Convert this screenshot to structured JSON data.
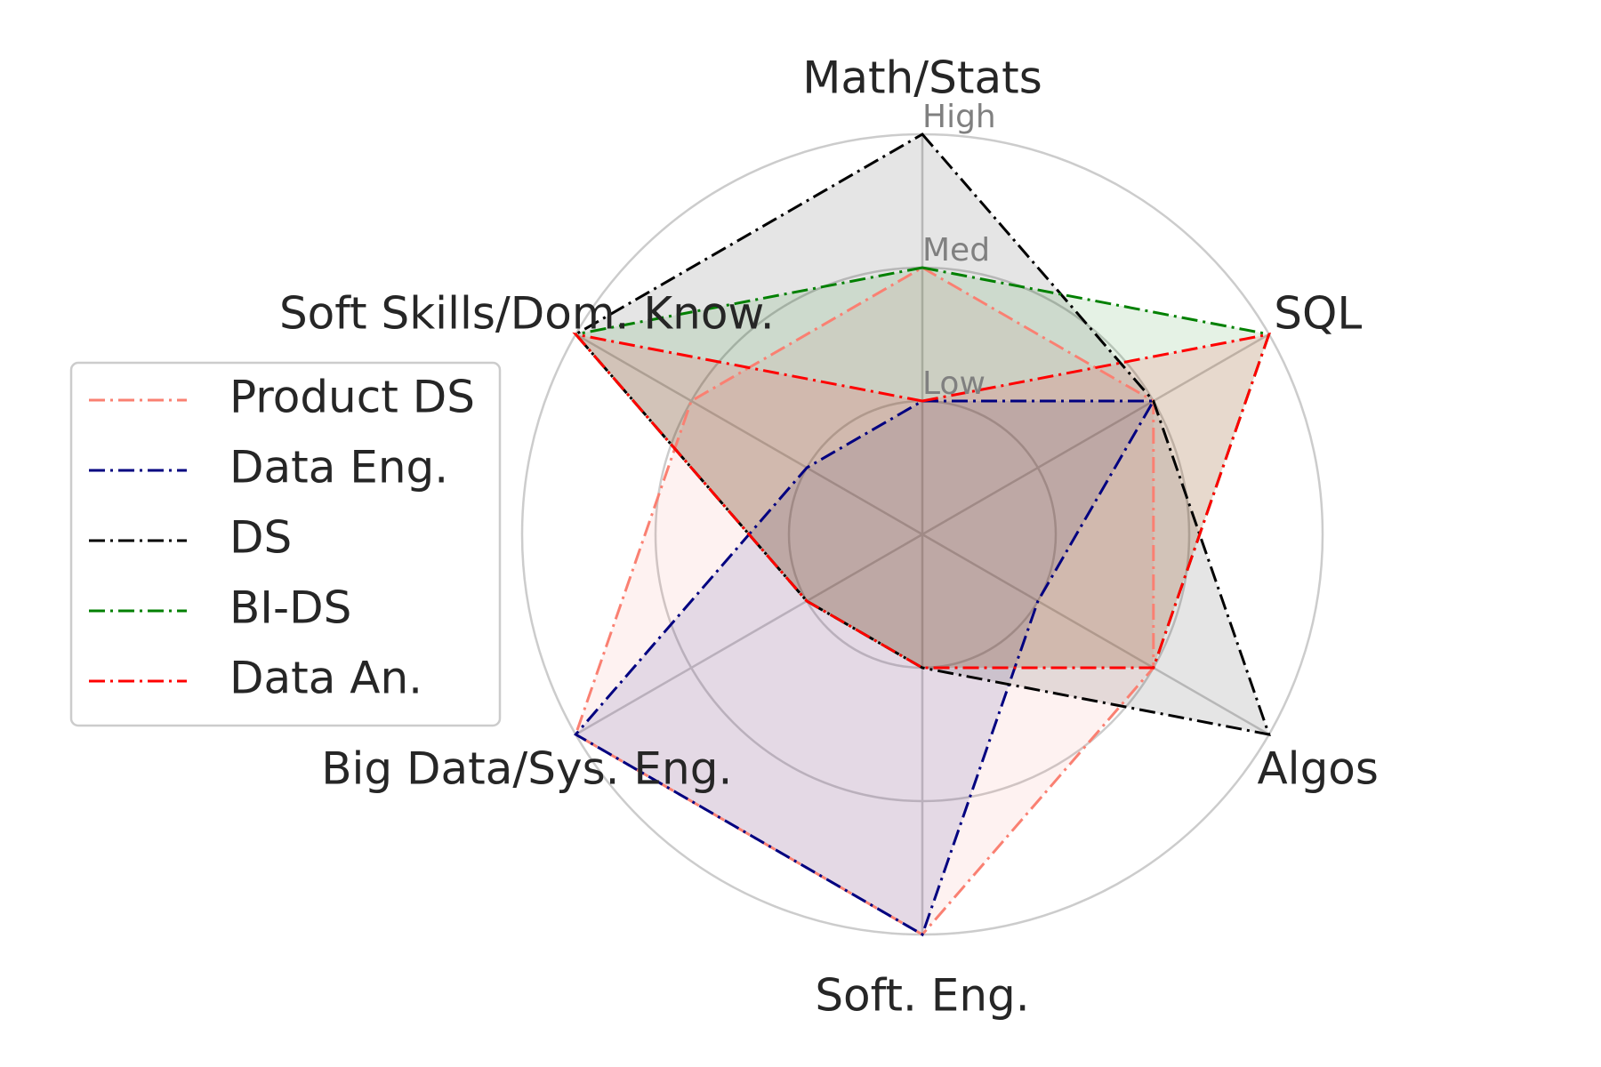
{
  "chart_data": {
    "type": "radar",
    "axes": [
      "Math/Stats",
      "SQL",
      "Algos",
      "Soft. Eng.",
      "Big Data/Sys. Eng.",
      "Soft Skills/Dom. Know."
    ],
    "levels": [
      "Low",
      "Med",
      "High"
    ],
    "rlim": [
      0,
      3
    ],
    "grid": true,
    "legend": {
      "position": "left"
    },
    "series": [
      {
        "name": "Product DS",
        "values": [
          2,
          2,
          2,
          3,
          3,
          2
        ],
        "color": "#fa8072"
      },
      {
        "name": "Data Eng.",
        "values": [
          1,
          2,
          1,
          3,
          3,
          1
        ],
        "color": "#000080"
      },
      {
        "name": "DS",
        "values": [
          3,
          2,
          3,
          1,
          1,
          3
        ],
        "color": "#000000"
      },
      {
        "name": "BI-DS",
        "values": [
          2,
          3,
          2,
          1,
          1,
          3
        ],
        "color": "#008000"
      },
      {
        "name": "Data An.",
        "values": [
          1,
          3,
          2,
          1,
          1,
          3
        ],
        "color": "#ff0000"
      }
    ]
  }
}
